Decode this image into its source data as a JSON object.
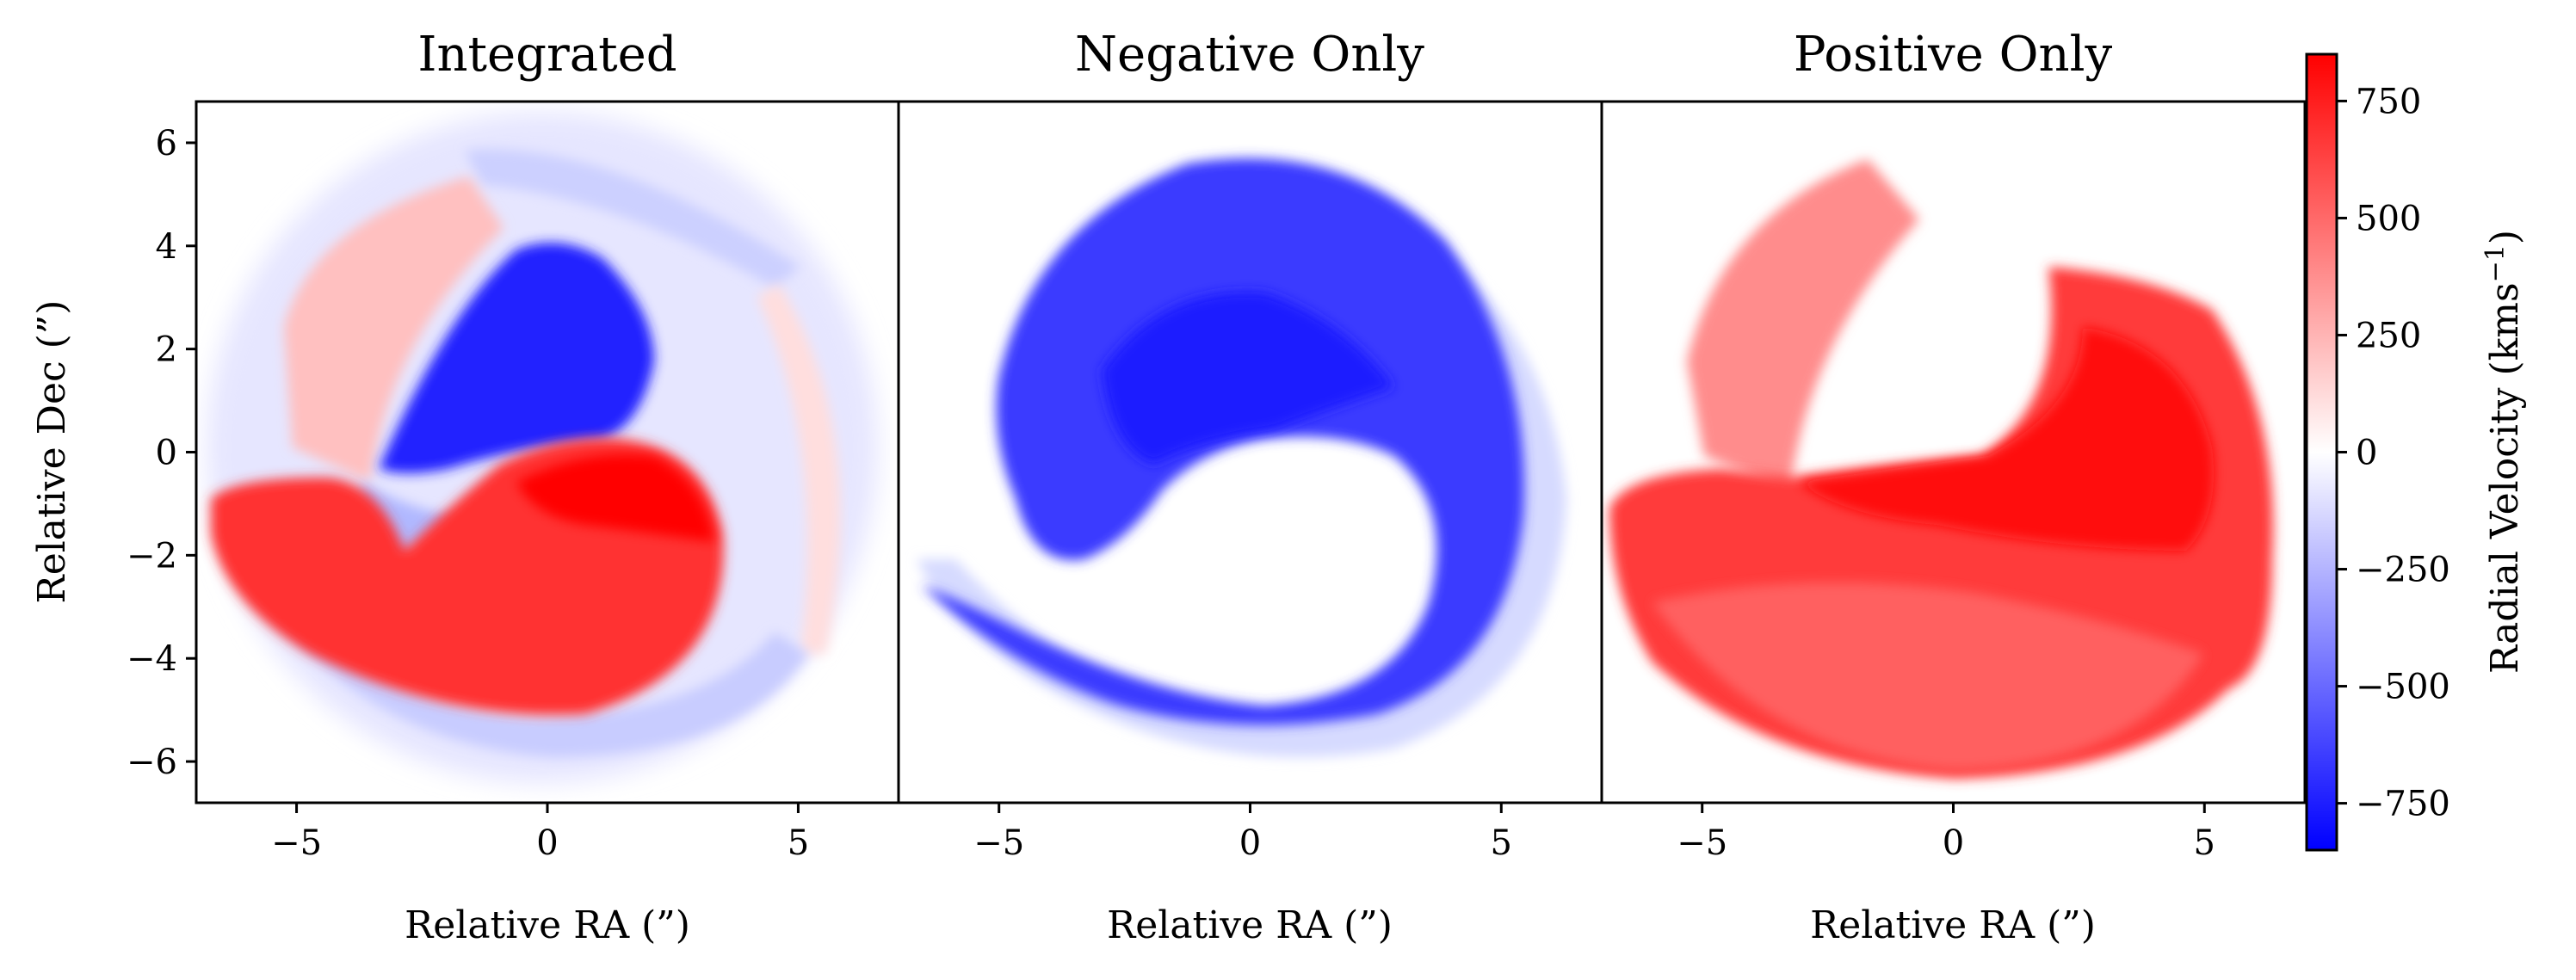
{
  "chart_data": [
    {
      "type": "heatmap",
      "title": "Integrated",
      "xlabel": "Relative RA (”)",
      "ylabel": "Relative Dec (”)",
      "xlim": [
        -7,
        7
      ],
      "ylim": [
        -6.8,
        6.8
      ],
      "xticks": [
        {
          "v": -5,
          "t": "−5"
        },
        {
          "v": 0,
          "t": "0"
        },
        {
          "v": 5,
          "t": "5"
        }
      ],
      "yticks": [
        {
          "v": 6,
          "t": "6"
        },
        {
          "v": 4,
          "t": "4"
        },
        {
          "v": 2,
          "t": "2"
        },
        {
          "v": 0,
          "t": "0"
        },
        {
          "v": -2,
          "t": "−2"
        },
        {
          "v": -4,
          "t": "−4"
        },
        {
          "v": -6,
          "t": "−6"
        }
      ]
    },
    {
      "type": "heatmap",
      "title": "Negative Only",
      "xlabel": "Relative RA (”)",
      "xlim": [
        -7,
        7
      ],
      "ylim": [
        -6.8,
        6.8
      ],
      "xticks": [
        {
          "v": -5,
          "t": "−5"
        },
        {
          "v": 0,
          "t": "0"
        },
        {
          "v": 5,
          "t": "5"
        }
      ]
    },
    {
      "type": "heatmap",
      "title": "Positive Only",
      "xlabel": "Relative RA (”)",
      "xlim": [
        -7,
        7
      ],
      "ylim": [
        -6.8,
        6.8
      ],
      "xticks": [
        {
          "v": -5,
          "t": "−5"
        },
        {
          "v": 0,
          "t": "0"
        },
        {
          "v": 5,
          "t": "5"
        }
      ]
    }
  ],
  "colorbar": {
    "label": "Radial Velocity (kms",
    "label_sup": "−1",
    "label_end": ")",
    "range": [
      -850,
      850
    ],
    "colors": {
      "negative": "#0000ff",
      "zero": "#ffffff",
      "positive": "#ff0000"
    },
    "ticks": [
      {
        "v": 750,
        "t": "750"
      },
      {
        "v": 500,
        "t": "500"
      },
      {
        "v": 250,
        "t": "250"
      },
      {
        "v": 0,
        "t": "0"
      },
      {
        "v": -250,
        "t": "−250"
      },
      {
        "v": -500,
        "t": "−500"
      },
      {
        "v": -750,
        "t": "−750"
      }
    ]
  }
}
